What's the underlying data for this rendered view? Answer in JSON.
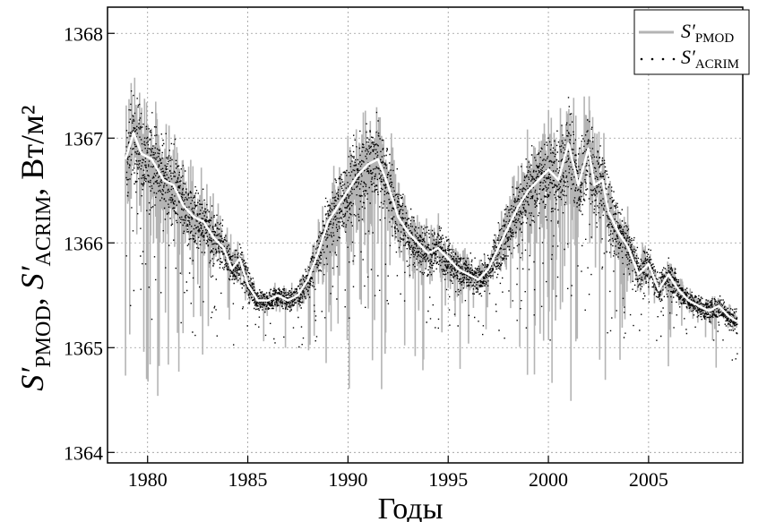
{
  "chart_data": {
    "type": "line",
    "xlabel": "Годы",
    "ylabel": {
      "s1": "S′",
      "sub1": "PMOD",
      "sep": ", ",
      "s2": "S′",
      "sub2": "ACRIM",
      "unit": ",  Вт/м²"
    },
    "xlim": [
      1978,
      2009.7
    ],
    "ylim": [
      1363.9,
      1368.25
    ],
    "x_ticks": [
      1980,
      1985,
      1990,
      1995,
      2000,
      2005
    ],
    "y_ticks": [
      1364,
      1365,
      1366,
      1367,
      1368
    ],
    "grid": true,
    "legend_position": "top-right",
    "series": [
      {
        "name": "S′",
        "name_sub": "PMOD",
        "style": "gray line (daily values)",
        "color": "#b4b4b4"
      },
      {
        "name": "S′",
        "name_sub": "ACRIM",
        "style": "black dots (daily values)",
        "color": "#000000"
      },
      {
        "name": "",
        "style": "white smoothed curve",
        "color": "#ffffff",
        "x": [
          1978.9,
          1979.3,
          1979.7,
          1980.2,
          1980.8,
          1981.3,
          1981.8,
          1982.3,
          1982.8,
          1983.3,
          1983.8,
          1984.2,
          1984.6,
          1985.0,
          1985.5,
          1986.0,
          1986.5,
          1987.0,
          1987.5,
          1988.0,
          1988.5,
          1989.0,
          1989.5,
          1990.0,
          1990.5,
          1991.0,
          1991.5,
          1992.0,
          1992.5,
          1993.0,
          1993.5,
          1994.0,
          1994.5,
          1995.0,
          1995.5,
          1996.0,
          1996.5,
          1997.0,
          1997.5,
          1998.0,
          1998.5,
          1999.0,
          1999.5,
          2000.0,
          2000.5,
          2001.0,
          2001.5,
          2002.0,
          2002.3,
          2002.7,
          2003.0,
          2003.5,
          2004.0,
          2004.5,
          2005.0,
          2005.5,
          2006.0,
          2006.5,
          2007.0,
          2007.5,
          2008.0,
          2008.5,
          2009.0,
          2009.4
        ],
        "y": [
          1366.8,
          1367.05,
          1366.85,
          1366.8,
          1366.6,
          1366.55,
          1366.35,
          1366.25,
          1366.2,
          1366.05,
          1365.95,
          1365.75,
          1365.85,
          1365.6,
          1365.45,
          1365.45,
          1365.5,
          1365.45,
          1365.5,
          1365.65,
          1365.9,
          1366.2,
          1366.35,
          1366.5,
          1366.65,
          1366.75,
          1366.8,
          1366.55,
          1366.25,
          1366.1,
          1366.0,
          1365.9,
          1365.95,
          1365.85,
          1365.75,
          1365.7,
          1365.65,
          1365.75,
          1365.95,
          1366.15,
          1366.35,
          1366.5,
          1366.6,
          1366.7,
          1366.6,
          1366.95,
          1366.55,
          1366.9,
          1366.55,
          1366.6,
          1366.3,
          1366.1,
          1365.95,
          1365.7,
          1365.8,
          1365.55,
          1365.7,
          1365.55,
          1365.45,
          1365.4,
          1365.35,
          1365.4,
          1365.3,
          1365.25
        ]
      }
    ]
  }
}
